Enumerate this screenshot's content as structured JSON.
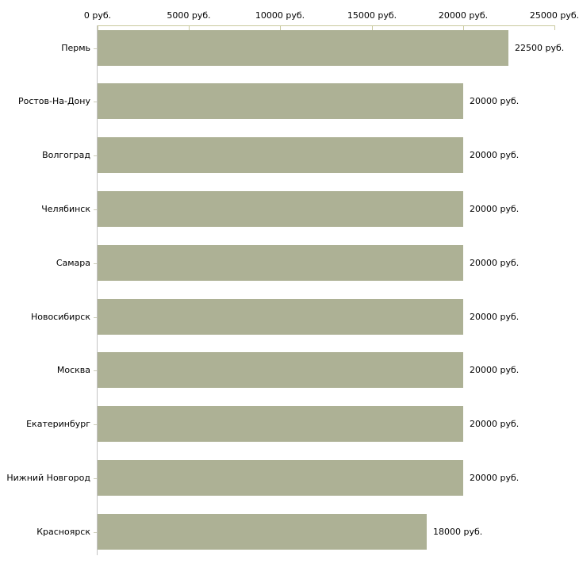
{
  "chart_data": {
    "type": "bar",
    "orientation": "horizontal",
    "title": "",
    "categories": [
      "Пермь",
      "Ростов-На-Дону",
      "Волгоград",
      "Челябинск",
      "Самара",
      "Новосибирск",
      "Москва",
      "Екатеринбург",
      "Нижний Новгород",
      "Красноярск"
    ],
    "values": [
      22500,
      20000,
      20000,
      20000,
      20000,
      20000,
      20000,
      20000,
      20000,
      18000
    ],
    "value_labels": [
      "22500 руб.",
      "20000 руб.",
      "20000 руб.",
      "20000 руб.",
      "20000 руб.",
      "20000 руб.",
      "20000 руб.",
      "20000 руб.",
      "20000 руб.",
      "18000 руб."
    ],
    "x_axis": {
      "position": "top",
      "min": 0,
      "max": 25000,
      "ticks": [
        0,
        5000,
        10000,
        15000,
        20000,
        25000
      ],
      "tick_labels": [
        "0 руб.",
        "5000 руб.",
        "10000 руб.",
        "15000 руб.",
        "20000 руб.",
        "25000 руб."
      ]
    },
    "grid": false,
    "legend": false,
    "colors": {
      "bar": "#adb195",
      "x_axis_line": "#c9c99e",
      "y_axis_line": "#c3c3c3",
      "y_tick": "#ccccb8",
      "text": "#000000",
      "background": "#ffffff"
    }
  }
}
